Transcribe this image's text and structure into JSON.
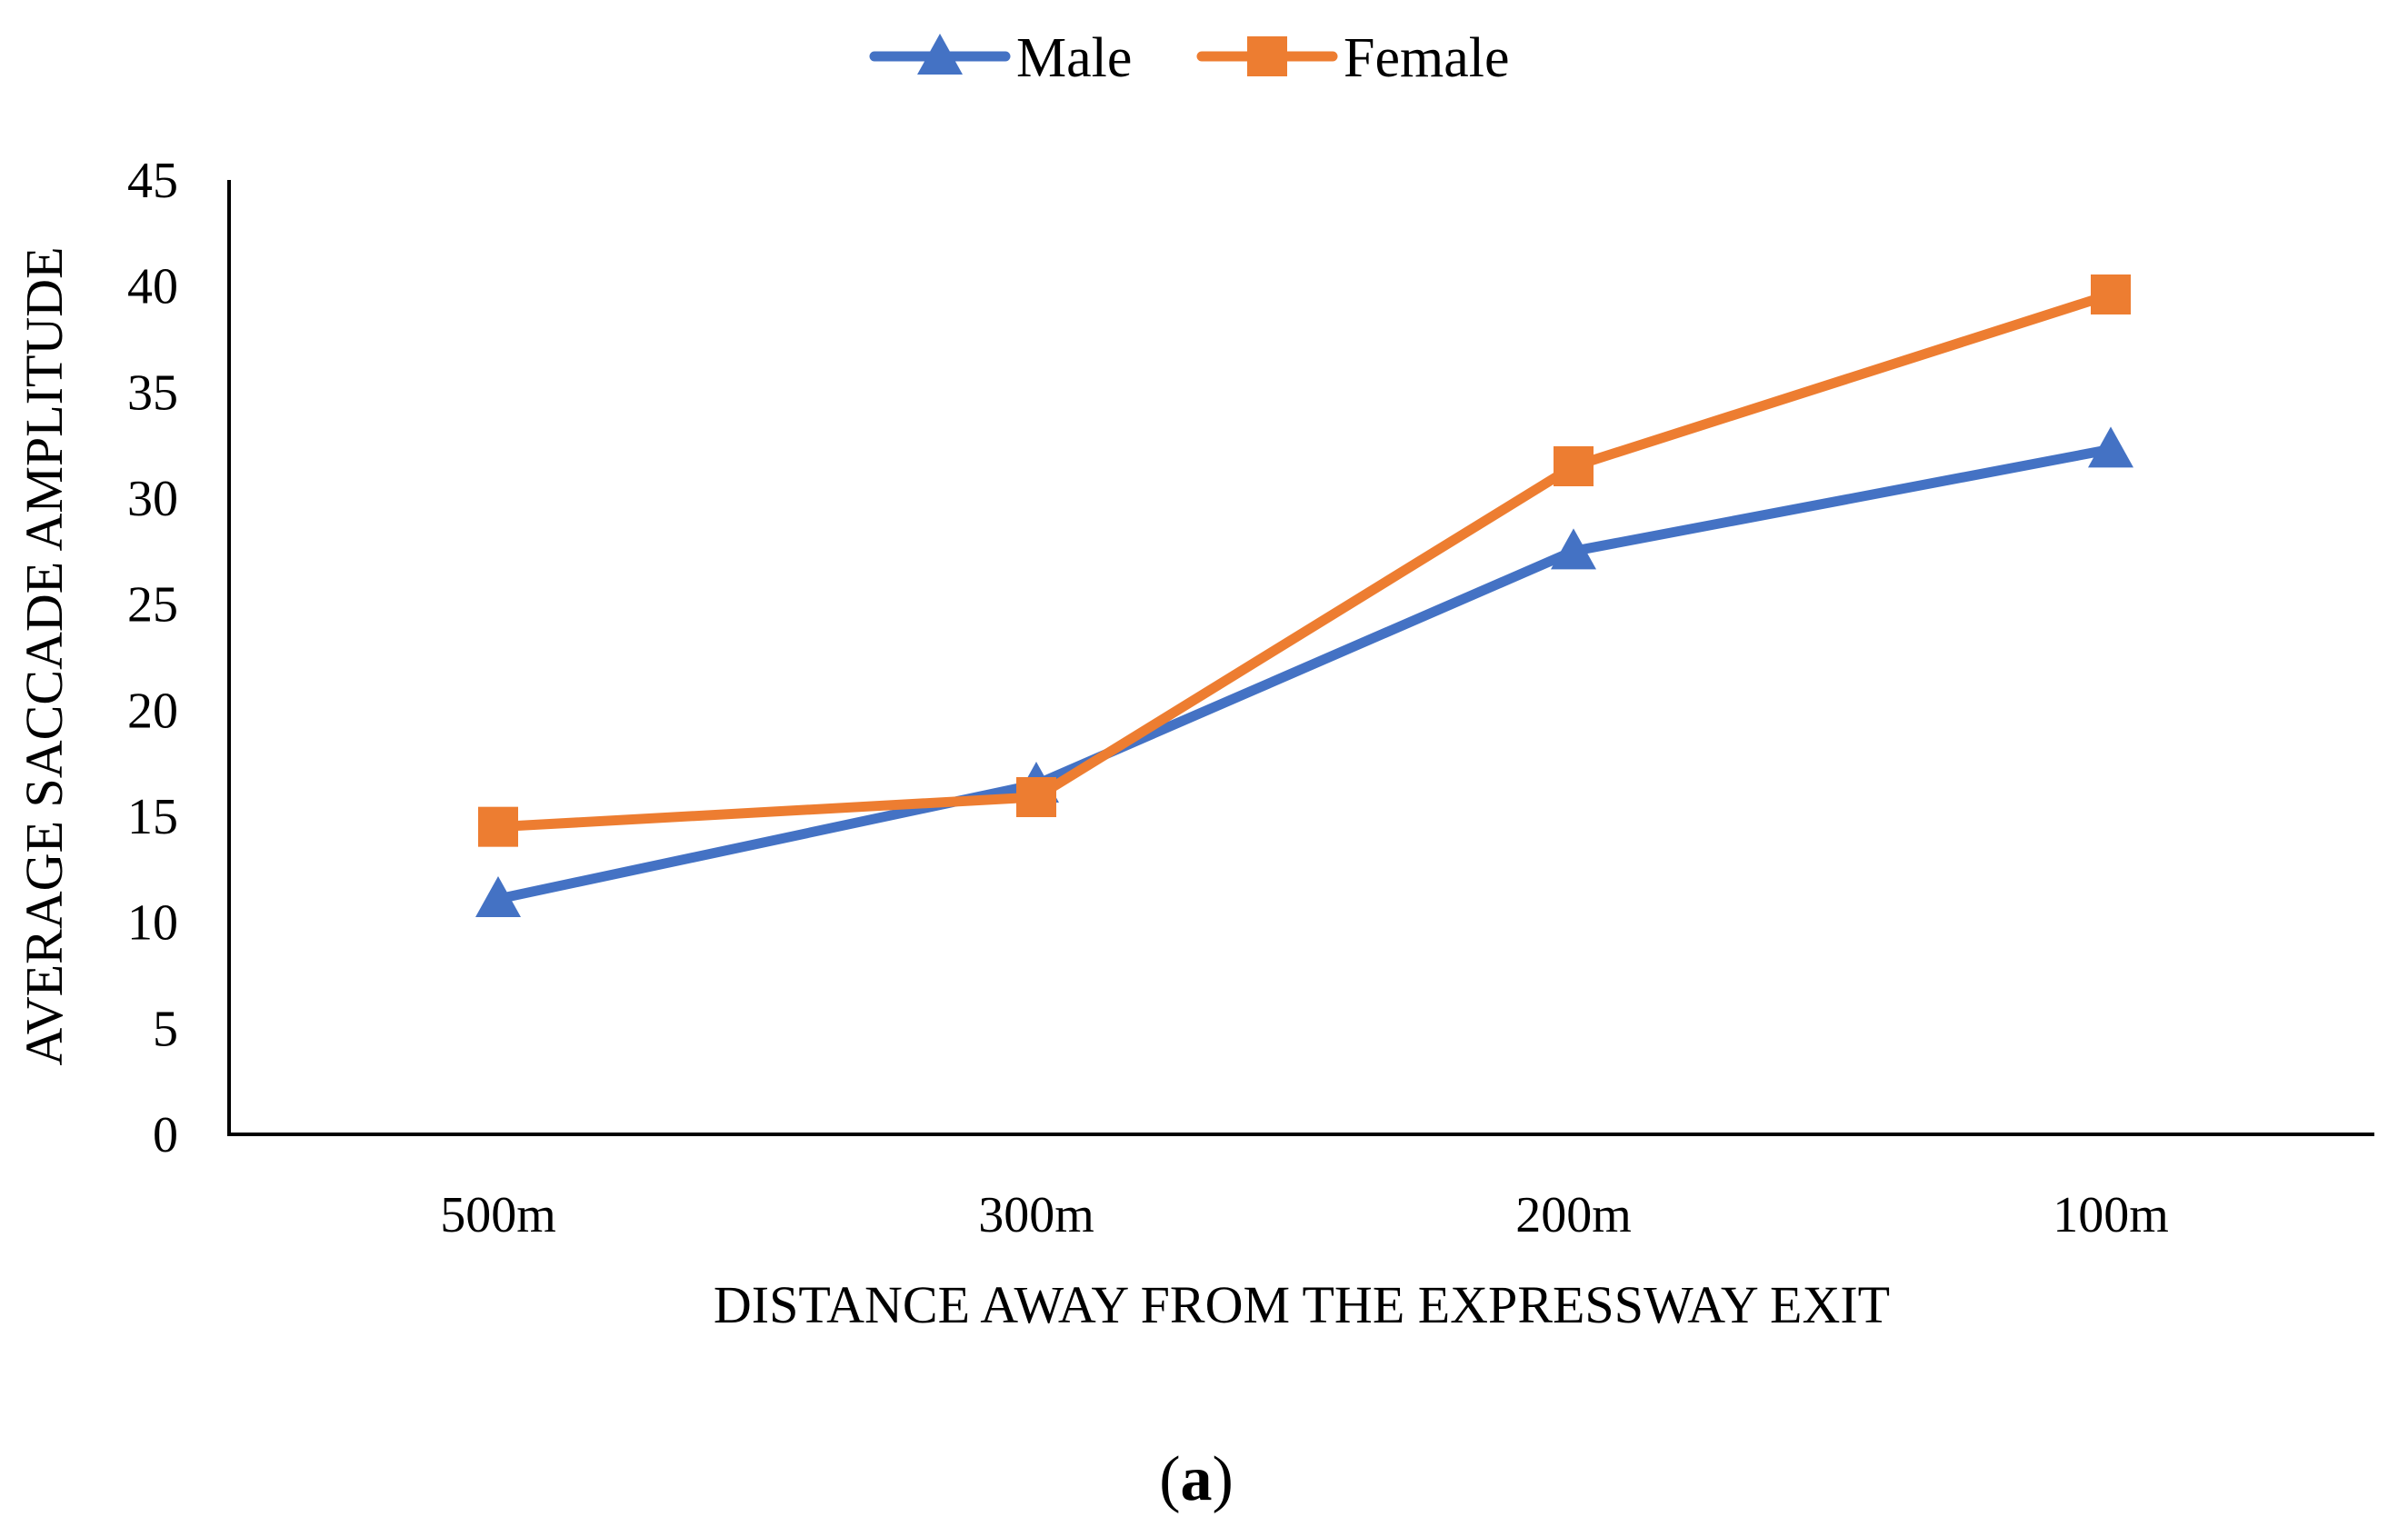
{
  "chart_data": {
    "type": "line",
    "title": "",
    "categories": [
      "500m",
      "300m",
      "200m",
      "100m"
    ],
    "xlabel": "DISTANCE AWAY FROM THE EXPRESSWAY EXIT",
    "ylabel": "AVERAGE SACCADE AMPLITUDE",
    "ylim": [
      0,
      45
    ],
    "yticks": [
      0,
      5,
      10,
      15,
      20,
      25,
      30,
      35,
      40,
      45
    ],
    "grid": false,
    "legend_position": "top-center",
    "series": [
      {
        "name": "Male",
        "marker": "triangle",
        "color": "#4472C4",
        "values": [
          11.1,
          16.5,
          27.5,
          32.3
        ]
      },
      {
        "name": "Female",
        "marker": "square",
        "color": "#ED7D31",
        "values": [
          14.5,
          15.9,
          31.5,
          39.6
        ]
      }
    ]
  },
  "caption": {
    "open": "(",
    "label": "a",
    "close": ")"
  }
}
